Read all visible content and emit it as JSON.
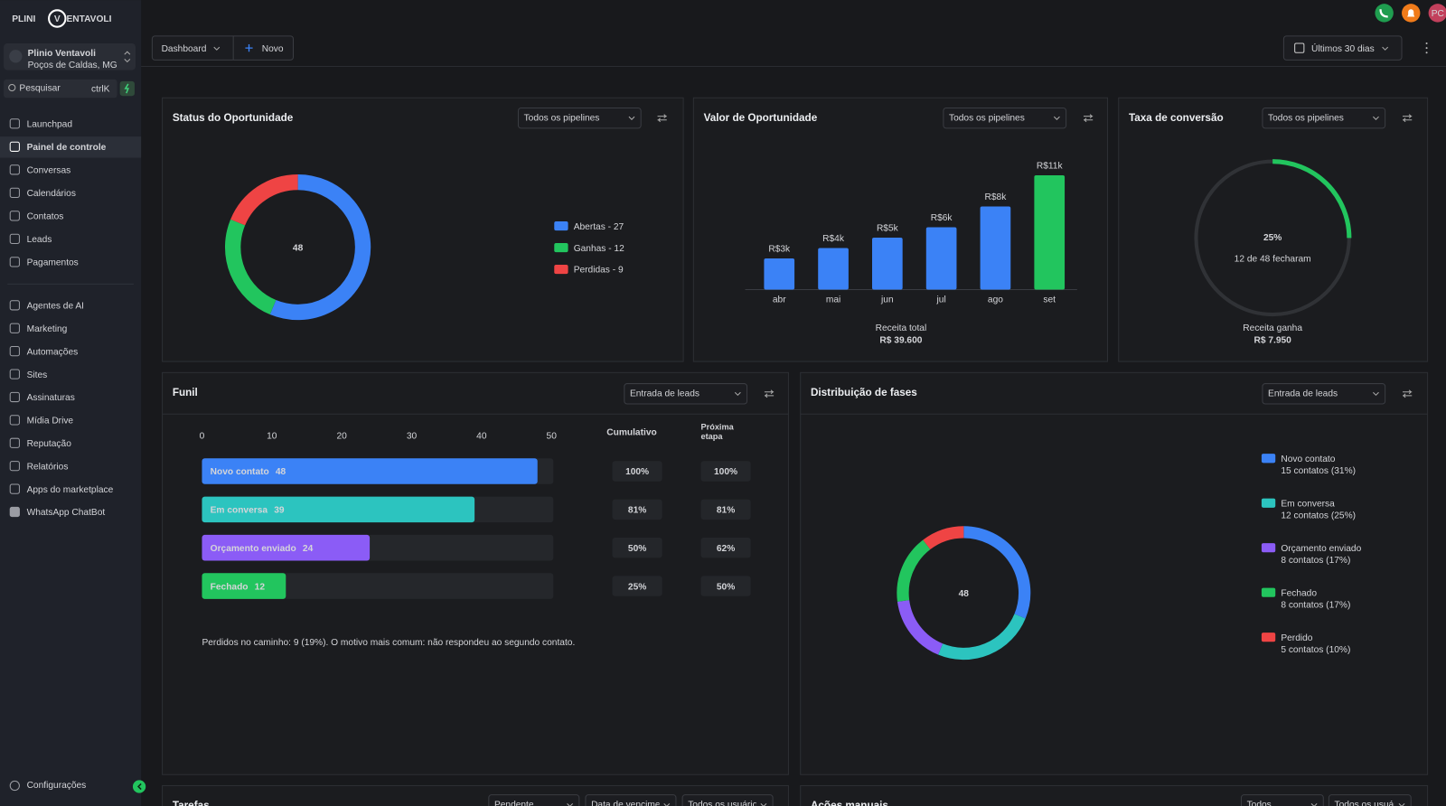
{
  "brand": {
    "logo": [
      "PLINI",
      "V",
      "ENTAVOLI"
    ]
  },
  "account": {
    "name": "Plinio Ventavoli",
    "location": "Poços de Caldas, MG"
  },
  "search": {
    "placeholder": "Pesquisar",
    "shortcut": "ctrlK"
  },
  "nav": {
    "primary": [
      "Launchpad",
      "Painel de controle",
      "Conversas",
      "Calendários",
      "Contatos",
      "Leads",
      "Pagamentos"
    ],
    "secondary": [
      "Agentes de AI",
      "Marketing",
      "Automações",
      "Sites",
      "Assinaturas",
      "Mídia Drive",
      "Reputação",
      "Relatórios",
      "Apps do marketplace",
      "WhatsApp ChatBot"
    ],
    "settings": "Configurações"
  },
  "topbar": {
    "avatar": "PC",
    "tabs": [
      "Dashboard",
      "Novo"
    ],
    "date_range": "Últimos 30 dias"
  },
  "cards": {
    "status": {
      "title": "Status do Oportunidade",
      "filter": "Todos os pipelines"
    },
    "valor": {
      "title": "Valor de Oportunidade",
      "filter": "Todos os pipelines",
      "total_label": "Receita total",
      "total": "R$ 39.600"
    },
    "conversao": {
      "title": "Taxa de conversão",
      "filter": "Todos os pipelines",
      "caption": "12 de 48 fecharam",
      "footer_label": "Receita ganha",
      "footer_value": "R$ 7.950"
    },
    "funil": {
      "title": "Funil",
      "filter": "Entrada de leads",
      "note": "Perdidos no caminho: 9 (19%). O motivo mais comum: não respondeu ao segundo contato."
    },
    "fases": {
      "title": "Distribuição de fases",
      "filter": "Entrada de leads"
    },
    "tarefas": {
      "title": "Tarefas",
      "filters": [
        "Pendente",
        "Data de vencimento",
        "Todos os usuários"
      ]
    },
    "acoes": {
      "title": "Ações manuais",
      "filters": [
        "Todos",
        "Todos os usuários"
      ]
    }
  },
  "chart_data": [
    {
      "type": "donut",
      "total": 48,
      "categories": [
        "Abertas - 27",
        "Ganhas - 12",
        "Perdidas - 9"
      ],
      "values": [
        27,
        12,
        9
      ],
      "colors": [
        "#3b82f6",
        "#22c55e",
        "#ef4444"
      ]
    },
    {
      "type": "bar",
      "categories": [
        "abr",
        "mai",
        "jun",
        "jul",
        "ago",
        "set"
      ],
      "values": [
        3000,
        4000,
        5000,
        6000,
        8000,
        11000
      ],
      "value_labels": [
        "R$3k",
        "R$4k",
        "R$5k",
        "R$6k",
        "R$8k",
        "R$11k"
      ],
      "colors": [
        "#3b82f6",
        "#3b82f6",
        "#3b82f6",
        "#3b82f6",
        "#3b82f6",
        "#22c55e"
      ]
    },
    {
      "type": "gauge",
      "value": 25,
      "value_label": "25%",
      "ylim": [
        0,
        100
      ],
      "color": "#22c55e"
    },
    {
      "type": "hbar",
      "categories": [
        "Novo contato",
        "Em conversa",
        "Orçamento enviado",
        "Fechado"
      ],
      "values": [
        48,
        39,
        24,
        12
      ],
      "colors": [
        "#3b82f6",
        "#2cc4bf",
        "#8b5cf6",
        "#22c55e"
      ],
      "xlim": [
        0,
        50
      ],
      "xticks": [
        0,
        10,
        20,
        30,
        40,
        50
      ],
      "columns": [
        "Cumulativo",
        "Próxima etapa"
      ],
      "cumulative": [
        100,
        81,
        50,
        25
      ],
      "cumulative_labels": [
        "100%",
        "81%",
        "50%",
        "25%"
      ],
      "next_stage": [
        100,
        81,
        62,
        50
      ],
      "next_stage_labels": [
        "100%",
        "81%",
        "62%",
        "50%"
      ]
    },
    {
      "type": "donut",
      "total": 48,
      "categories": [
        "Novo contato",
        "Em conversa",
        "Orçamento enviado",
        "Fechado",
        "Perdido"
      ],
      "values": [
        15,
        12,
        8,
        8,
        5
      ],
      "value_labels": [
        "15 contatos  (31%)",
        "12 contatos  (25%)",
        "8 contatos  (17%)",
        "8 contatos  (17%)",
        "5 contatos  (10%)"
      ],
      "colors": [
        "#3b82f6",
        "#2cc4bf",
        "#8b5cf6",
        "#22c55e",
        "#ef4444"
      ]
    }
  ]
}
